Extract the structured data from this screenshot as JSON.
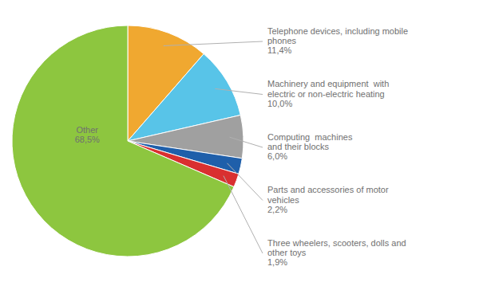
{
  "chart_data": {
    "type": "pie",
    "categories": [
      "Telephone devices, including mobile\nphones",
      "Machinery and equipment  with\nelectric or non-electric heating",
      "Computing  machines\nand their blocks",
      "Parts and accessories of motor\nvehicles",
      "Three wheelers, scooters, dolls and\nother toys",
      "Other"
    ],
    "values": [
      11.4,
      10.0,
      6.0,
      2.2,
      1.9,
      68.5
    ],
    "value_labels": [
      "11,4%",
      "10,0%",
      "6,0%",
      "2,2%",
      "1,9%",
      "68,5%"
    ],
    "data_labels": true,
    "colors": [
      "#f0a830",
      "#58c4e8",
      "#a0a0a0",
      "#1f5faa",
      "#d93030",
      "#8dc63f"
    ]
  }
}
